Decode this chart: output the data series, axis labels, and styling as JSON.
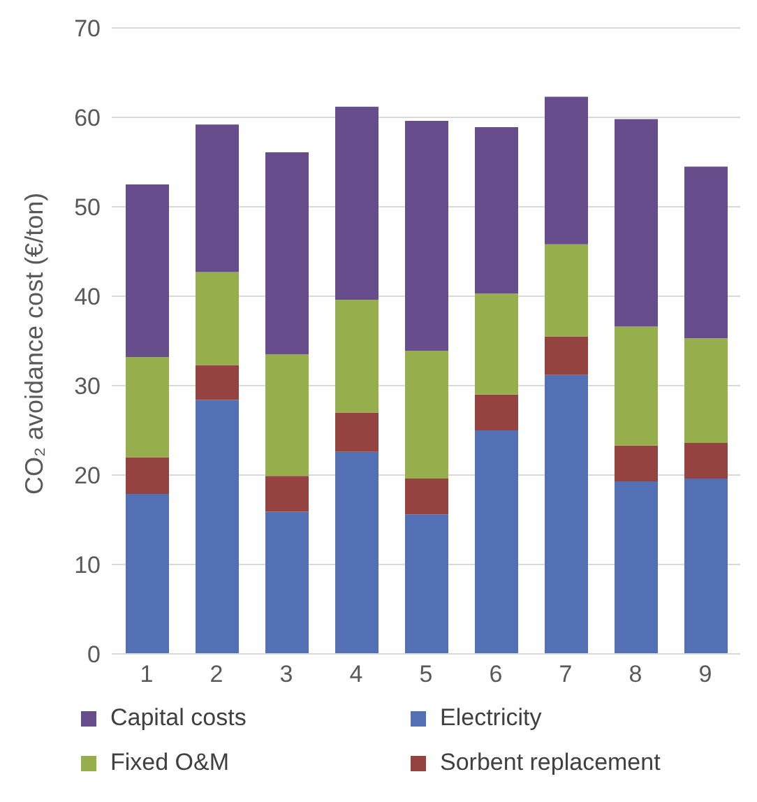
{
  "chart_data": {
    "type": "bar",
    "stacked": true,
    "ylabel": "CO₂ avoidance cost (€/ton)",
    "categories": [
      "1",
      "2",
      "3",
      "4",
      "5",
      "6",
      "7",
      "8",
      "9"
    ],
    "series": [
      {
        "name": "Electricity",
        "color": "#5470b4",
        "values": [
          17.9,
          28.4,
          15.9,
          22.6,
          15.6,
          25.0,
          31.2,
          19.3,
          19.6
        ]
      },
      {
        "name": "Sorbent replacement",
        "color": "#954341",
        "values": [
          4.1,
          3.9,
          4.0,
          4.4,
          4.0,
          4.0,
          4.3,
          4.0,
          4.0
        ]
      },
      {
        "name": "Fixed O&M",
        "color": "#97ae4c",
        "values": [
          11.2,
          10.4,
          13.6,
          12.6,
          14.3,
          11.3,
          10.3,
          13.3,
          11.7
        ]
      },
      {
        "name": "Capital costs",
        "color": "#674d8b",
        "values": [
          19.3,
          16.5,
          22.6,
          21.6,
          25.7,
          18.6,
          16.5,
          23.2,
          19.2
        ]
      }
    ],
    "ylim": [
      0,
      70
    ],
    "yticks": [
      0,
      10,
      20,
      30,
      40,
      50,
      60,
      70
    ],
    "grid": "y",
    "legend": "bottom"
  }
}
